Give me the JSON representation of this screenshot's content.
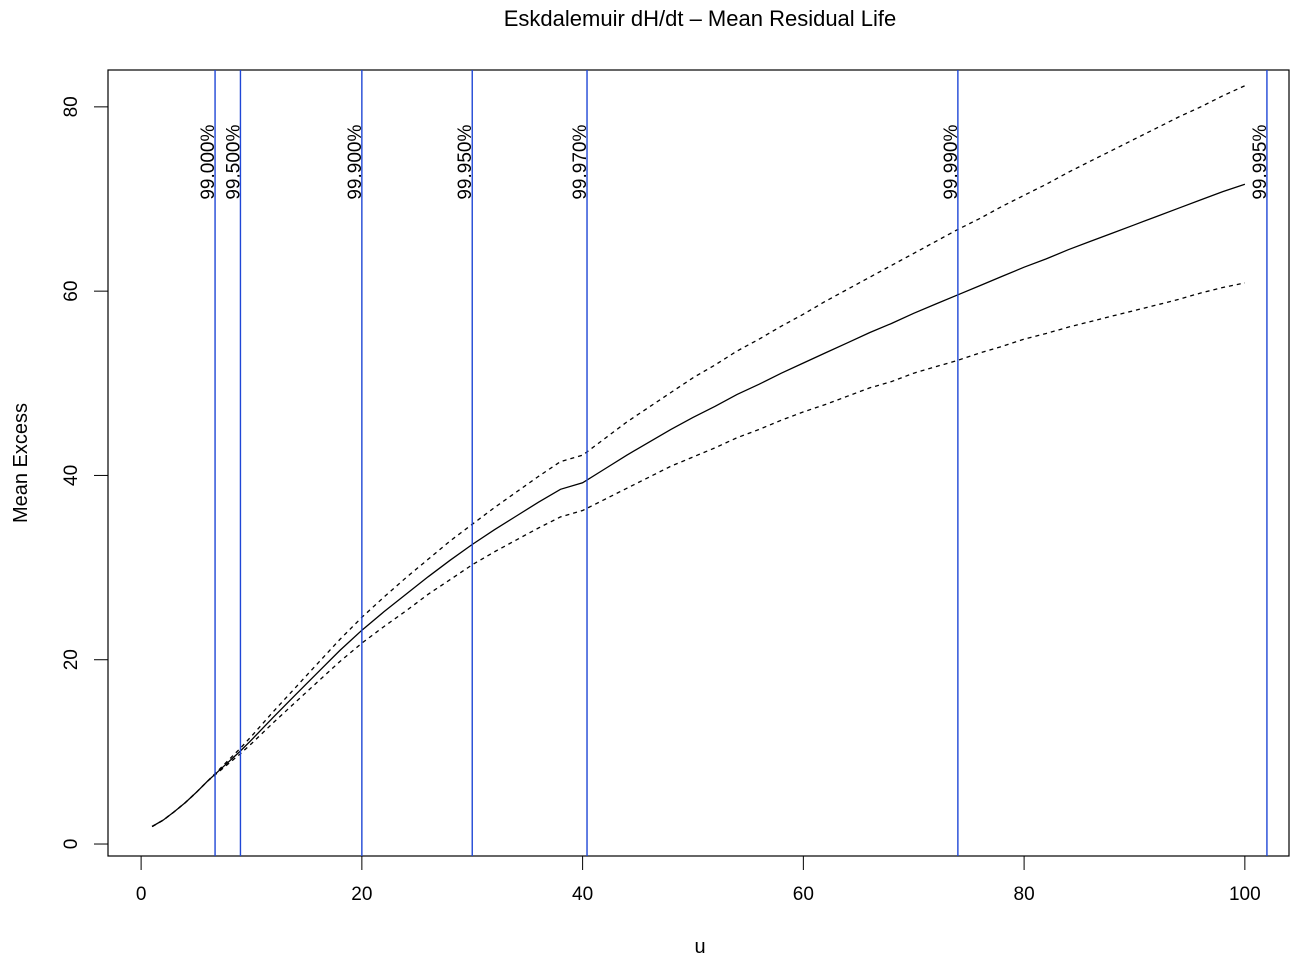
{
  "chart_data": {
    "type": "line",
    "title": "Eskdalemuir dH/dt – Mean Residual Life",
    "xlabel": "u",
    "ylabel": "Mean Excess",
    "xlim": [
      -3,
      104
    ],
    "ylim": [
      -1.3,
      84
    ],
    "xticks": [
      0,
      20,
      40,
      60,
      80,
      100
    ],
    "yticks": [
      0,
      20,
      40,
      60,
      80
    ],
    "grid": false,
    "colors": {
      "line": "#000000",
      "ci": "#000000",
      "vline": "#1f47d6",
      "frame": "#000000"
    },
    "x": [
      1,
      2,
      3,
      4,
      5,
      6,
      7,
      8,
      9,
      10,
      12,
      14,
      16,
      18,
      20,
      22,
      24,
      26,
      28,
      30,
      32,
      34,
      36,
      38,
      40,
      42,
      44,
      46,
      48,
      50,
      52,
      54,
      56,
      58,
      60,
      62,
      64,
      66,
      68,
      70,
      72,
      74,
      76,
      78,
      80,
      82,
      84,
      86,
      88,
      90,
      92,
      94,
      96,
      98,
      100
    ],
    "series": [
      {
        "role": "estimate",
        "style": "solid",
        "values": [
          1.9,
          2.6,
          3.5,
          4.5,
          5.6,
          6.8,
          7.9,
          9.0,
          10.1,
          11.3,
          13.8,
          16.2,
          18.6,
          21.0,
          23.2,
          25.2,
          27.1,
          29.0,
          30.8,
          32.5,
          34.1,
          35.6,
          37.1,
          38.5,
          39.2,
          40.7,
          42.2,
          43.6,
          45.0,
          46.3,
          47.5,
          48.8,
          49.9,
          51.1,
          52.2,
          53.3,
          54.4,
          55.5,
          56.5,
          57.6,
          58.6,
          59.6,
          60.6,
          61.6,
          62.6,
          63.5,
          64.5,
          65.4,
          66.3,
          67.2,
          68.1,
          69.0,
          69.9,
          70.8,
          71.6
        ]
      },
      {
        "role": "upper",
        "style": "dashed",
        "values": [
          1.9,
          2.6,
          3.5,
          4.5,
          5.6,
          6.8,
          8.0,
          9.2,
          10.4,
          11.7,
          14.4,
          17.0,
          19.6,
          22.2,
          24.6,
          26.8,
          28.9,
          30.9,
          32.9,
          34.7,
          36.5,
          38.2,
          39.9,
          41.5,
          42.2,
          44.0,
          45.8,
          47.4,
          49.0,
          50.6,
          52.0,
          53.5,
          54.8,
          56.2,
          57.5,
          58.9,
          60.2,
          61.5,
          62.8,
          64.1,
          65.4,
          66.7,
          67.9,
          69.2,
          70.4,
          71.6,
          72.9,
          74.1,
          75.3,
          76.5,
          77.7,
          78.9,
          80.0,
          81.2,
          82.3
        ]
      },
      {
        "role": "lower",
        "style": "dashed",
        "values": [
          1.9,
          2.6,
          3.5,
          4.5,
          5.6,
          6.8,
          7.8,
          8.8,
          9.8,
          10.9,
          13.2,
          15.4,
          17.6,
          19.8,
          21.8,
          23.6,
          25.3,
          27.1,
          28.7,
          30.3,
          31.7,
          33.0,
          34.3,
          35.5,
          36.2,
          37.4,
          38.6,
          39.8,
          41.0,
          42.0,
          43.0,
          44.1,
          45.0,
          46.0,
          46.9,
          47.7,
          48.6,
          49.5,
          50.2,
          51.1,
          51.8,
          52.5,
          53.3,
          54.0,
          54.8,
          55.4,
          56.1,
          56.7,
          57.3,
          57.9,
          58.5,
          59.1,
          59.8,
          60.4,
          60.9
        ]
      }
    ],
    "vlines": [
      {
        "x": 6.7,
        "label": "99.000%"
      },
      {
        "x": 9.0,
        "label": "99.500%"
      },
      {
        "x": 20.0,
        "label": "99.900%"
      },
      {
        "x": 30.0,
        "label": "99.950%"
      },
      {
        "x": 40.4,
        "label": "99.970%"
      },
      {
        "x": 74.0,
        "label": "99.990%"
      },
      {
        "x": 102.0,
        "label": "99.995%"
      }
    ],
    "vline_label_y": 74
  }
}
